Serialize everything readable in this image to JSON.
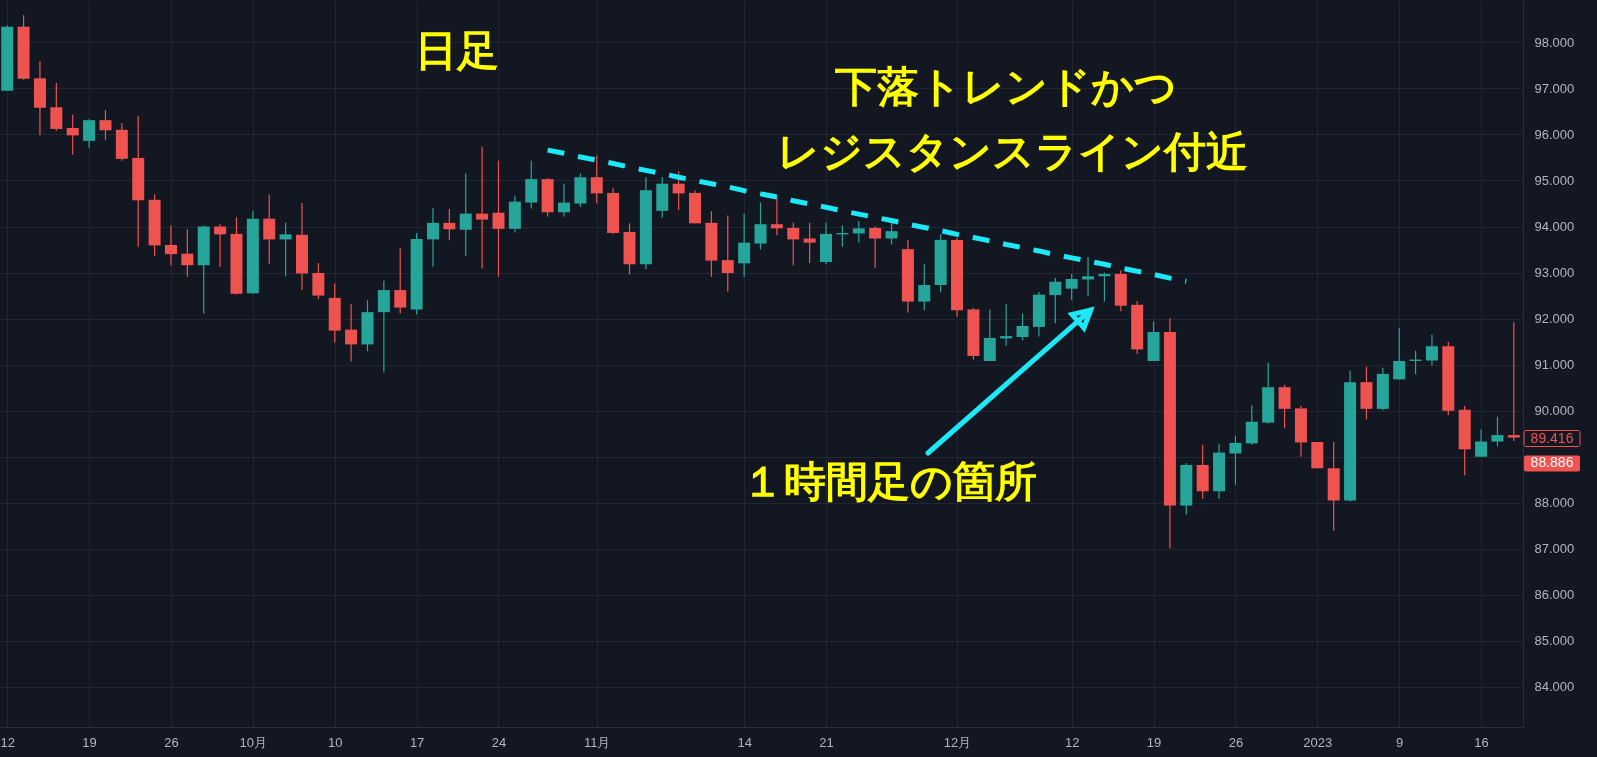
{
  "chart_data": {
    "type": "candlestick",
    "categories": [
      "12",
      null,
      null,
      null,
      null,
      "19",
      null,
      null,
      null,
      null,
      "26",
      null,
      null,
      null,
      null,
      "10月",
      null,
      null,
      null,
      null,
      "10",
      null,
      null,
      null,
      null,
      "17",
      null,
      null,
      null,
      null,
      "24",
      null,
      null,
      null,
      null,
      null,
      "11月",
      null,
      null,
      null,
      null,
      null,
      null,
      null,
      null,
      "14",
      null,
      null,
      null,
      null,
      "21",
      null,
      null,
      null,
      null,
      null,
      null,
      null,
      "12月",
      null,
      null,
      null,
      null,
      null,
      null,
      "12",
      null,
      null,
      null,
      null,
      "19",
      null,
      null,
      null,
      null,
      "26",
      null,
      null,
      null,
      null,
      "2023",
      null,
      null,
      null,
      null,
      "9",
      null,
      null,
      null,
      null,
      "16",
      null,
      null
    ],
    "ohlc": [
      [
        96.95,
        98.37,
        96.95,
        98.34
      ],
      [
        98.34,
        98.59,
        97.19,
        97.21
      ],
      [
        97.22,
        97.59,
        95.98,
        96.58
      ],
      [
        96.59,
        97.12,
        96.08,
        96.12
      ],
      [
        96.14,
        96.43,
        95.56,
        95.98
      ],
      [
        95.86,
        96.33,
        95.71,
        96.31
      ],
      [
        96.31,
        96.53,
        95.88,
        96.09
      ],
      [
        96.1,
        96.25,
        95.43,
        95.47
      ],
      [
        95.49,
        96.4,
        93.56,
        94.57
      ],
      [
        94.58,
        94.7,
        93.36,
        93.59
      ],
      [
        93.6,
        94.02,
        93.16,
        93.4
      ],
      [
        93.41,
        93.94,
        92.91,
        93.16
      ],
      [
        93.16,
        94.02,
        92.11,
        94.0
      ],
      [
        94.0,
        94.05,
        93.12,
        93.83
      ],
      [
        93.84,
        94.2,
        92.52,
        92.54
      ],
      [
        92.55,
        94.34,
        92.54,
        94.17
      ],
      [
        94.17,
        94.69,
        93.19,
        93.72
      ],
      [
        93.72,
        94.08,
        92.92,
        93.83
      ],
      [
        93.82,
        94.51,
        92.62,
        92.98
      ],
      [
        92.99,
        93.21,
        92.42,
        92.5
      ],
      [
        92.45,
        92.76,
        91.48,
        91.74
      ],
      [
        91.76,
        92.32,
        91.07,
        91.44
      ],
      [
        91.44,
        92.4,
        91.29,
        92.14
      ],
      [
        92.14,
        92.82,
        90.83,
        92.62
      ],
      [
        92.62,
        93.53,
        92.11,
        92.24
      ],
      [
        92.2,
        93.86,
        92.09,
        93.73
      ],
      [
        93.72,
        94.4,
        93.13,
        94.08
      ],
      [
        94.08,
        94.38,
        93.7,
        93.94
      ],
      [
        93.93,
        95.15,
        93.36,
        94.28
      ],
      [
        94.28,
        95.73,
        93.09,
        94.15
      ],
      [
        94.3,
        95.43,
        92.91,
        93.95
      ],
      [
        93.95,
        94.67,
        93.87,
        94.54
      ],
      [
        94.52,
        95.43,
        94.39,
        95.03
      ],
      [
        95.03,
        95.05,
        94.22,
        94.31
      ],
      [
        94.31,
        94.93,
        94.22,
        94.52
      ],
      [
        94.5,
        95.15,
        94.43,
        95.07
      ],
      [
        95.07,
        95.54,
        94.5,
        94.72
      ],
      [
        94.73,
        94.83,
        93.84,
        93.86
      ],
      [
        93.88,
        94.07,
        92.96,
        93.18
      ],
      [
        93.18,
        95.07,
        93.08,
        94.79
      ],
      [
        94.34,
        95.07,
        94.19,
        94.93
      ],
      [
        94.93,
        95.2,
        94.36,
        94.72
      ],
      [
        94.73,
        94.78,
        94.07,
        94.07
      ],
      [
        94.08,
        94.33,
        92.91,
        93.26
      ],
      [
        93.27,
        94.24,
        92.59,
        92.99
      ],
      [
        93.2,
        94.28,
        92.91,
        93.65
      ],
      [
        93.63,
        94.52,
        93.5,
        94.05
      ],
      [
        94.05,
        94.64,
        93.81,
        93.96
      ],
      [
        93.97,
        94.08,
        93.16,
        93.72
      ],
      [
        93.74,
        94.08,
        93.21,
        93.65
      ],
      [
        93.23,
        94.08,
        93.18,
        93.84
      ],
      [
        93.83,
        94.02,
        93.56,
        93.86
      ],
      [
        93.85,
        94.12,
        93.65,
        93.96
      ],
      [
        93.97,
        94.0,
        93.1,
        93.74
      ],
      [
        93.74,
        94.08,
        93.61,
        93.9
      ],
      [
        93.51,
        93.71,
        92.13,
        92.37
      ],
      [
        92.37,
        93.19,
        92.18,
        92.73
      ],
      [
        92.73,
        93.83,
        92.57,
        93.71
      ],
      [
        93.71,
        93.75,
        92.04,
        92.18
      ],
      [
        92.2,
        92.23,
        91.11,
        91.19
      ],
      [
        91.08,
        92.19,
        91.08,
        91.58
      ],
      [
        91.57,
        92.32,
        91.41,
        91.62
      ],
      [
        91.6,
        92.11,
        91.53,
        91.84
      ],
      [
        91.82,
        92.58,
        91.61,
        92.52
      ],
      [
        92.51,
        92.88,
        91.9,
        92.8
      ],
      [
        92.65,
        92.97,
        92.4,
        92.86
      ],
      [
        92.85,
        93.34,
        92.48,
        92.92
      ],
      [
        92.92,
        93.0,
        92.37,
        92.97
      ],
      [
        92.97,
        93.05,
        92.16,
        92.28
      ],
      [
        92.3,
        92.38,
        91.23,
        91.33
      ],
      [
        91.08,
        91.94,
        91.08,
        91.71
      ],
      [
        91.71,
        92.01,
        87.01,
        87.94
      ],
      [
        87.94,
        88.86,
        87.74,
        88.82
      ],
      [
        88.82,
        89.26,
        88.08,
        88.25
      ],
      [
        88.25,
        89.28,
        88.09,
        89.09
      ],
      [
        89.07,
        89.46,
        88.39,
        89.3
      ],
      [
        89.29,
        90.12,
        89.26,
        89.76
      ],
      [
        89.74,
        91.04,
        89.72,
        90.51
      ],
      [
        90.51,
        90.56,
        89.62,
        90.04
      ],
      [
        90.05,
        90.11,
        89.0,
        89.31
      ],
      [
        89.32,
        89.32,
        88.75,
        88.75
      ],
      [
        88.75,
        89.32,
        87.39,
        88.05
      ],
      [
        88.05,
        90.87,
        88.02,
        90.62
      ],
      [
        90.62,
        90.96,
        89.81,
        90.04
      ],
      [
        90.04,
        90.93,
        90.01,
        90.8
      ],
      [
        90.68,
        91.8,
        90.68,
        91.08
      ],
      [
        91.08,
        91.3,
        90.79,
        91.11
      ],
      [
        91.09,
        91.65,
        90.98,
        91.4
      ],
      [
        91.4,
        91.49,
        89.9,
        90.0
      ],
      [
        90.02,
        90.1,
        88.6,
        89.16
      ],
      [
        89.0,
        89.59,
        89.0,
        89.33
      ],
      [
        89.33,
        89.87,
        89.22,
        89.47
      ],
      [
        89.47,
        91.92,
        89.34,
        89.416
      ]
    ],
    "colors": [
      "#26a69a",
      "#ef5350",
      "#ef5350",
      "#ef5350",
      "#ef5350",
      "#26a69a",
      "#ef5350",
      "#ef5350",
      "#ef5350",
      "#ef5350",
      "#ef5350",
      "#ef5350",
      "#26a69a",
      "#ef5350",
      "#ef5350",
      "#26a69a",
      "#ef5350",
      "#26a69a",
      "#ef5350",
      "#ef5350",
      "#ef5350",
      "#ef5350",
      "#26a69a",
      "#26a69a",
      "#ef5350",
      "#26a69a",
      "#26a69a",
      "#ef5350",
      "#26a69a",
      "#ef5350",
      "#ef5350",
      "#26a69a",
      "#26a69a",
      "#ef5350",
      "#26a69a",
      "#26a69a",
      "#ef5350",
      "#ef5350",
      "#ef5350",
      "#26a69a",
      "#26a69a",
      "#ef5350",
      "#ef5350",
      "#ef5350",
      "#ef5350",
      "#26a69a",
      "#26a69a",
      "#ef5350",
      "#ef5350",
      "#ef5350",
      "#26a69a",
      "#26a69a",
      "#26a69a",
      "#ef5350",
      "#26a69a",
      "#ef5350",
      "#26a69a",
      "#26a69a",
      "#ef5350",
      "#ef5350",
      "#26a69a",
      "#26a69a",
      "#26a69a",
      "#26a69a",
      "#26a69a",
      "#26a69a",
      "#26a69a",
      "#26a69a",
      "#ef5350",
      "#ef5350",
      "#26a69a",
      "#ef5350",
      "#26a69a",
      "#ef5350",
      "#26a69a",
      "#26a69a",
      "#26a69a",
      "#26a69a",
      "#ef5350",
      "#ef5350",
      "#ef5350",
      "#ef5350",
      "#26a69a",
      "#ef5350",
      "#26a69a",
      "#26a69a",
      "#26a69a",
      "#26a69a",
      "#ef5350",
      "#ef5350",
      "#26a69a",
      "#26a69a",
      "#ef5350"
    ],
    "series": [
      {
        "type": "line",
        "color": "#1de9f6",
        "line_style": "dashed",
        "values": [
          null,
          null,
          null,
          null,
          null,
          null,
          null,
          null,
          null,
          null,
          null,
          null,
          null,
          null,
          null,
          null,
          null,
          null,
          null,
          null,
          null,
          null,
          null,
          null,
          null,
          null,
          null,
          null,
          null,
          null,
          null,
          null,
          null,
          95.66,
          95.59,
          95.51,
          95.44,
          95.37,
          95.29,
          95.22,
          95.15,
          95.07,
          95.0,
          94.93,
          94.86,
          94.78,
          94.71,
          94.64,
          94.56,
          94.49,
          94.42,
          94.34,
          94.27,
          94.2,
          94.13,
          94.05,
          93.98,
          93.91,
          93.83,
          93.76,
          93.69,
          93.61,
          93.54,
          93.47,
          93.39,
          93.32,
          93.25,
          93.18,
          93.1,
          93.03,
          92.96,
          92.88,
          92.81,
          null,
          null,
          null,
          null,
          null,
          null,
          null,
          null,
          null,
          null,
          null,
          null,
          null,
          null,
          null,
          null,
          null,
          null,
          null,
          null
        ]
      }
    ],
    "ylim": [
      83.13,
      98.92
    ],
    "yticks": [
      {
        "value": 84,
        "label": "84.000"
      },
      {
        "value": 85,
        "label": "85.000"
      },
      {
        "value": 86,
        "label": "86.000"
      },
      {
        "value": 87,
        "label": "87.000"
      },
      {
        "value": 88,
        "label": "88.000"
      },
      {
        "value": 89,
        "label": null
      },
      {
        "value": 90,
        "label": "90.000"
      },
      {
        "value": 91,
        "label": "91.000"
      },
      {
        "value": 92,
        "label": "92.000"
      },
      {
        "value": 93,
        "label": "93.000"
      },
      {
        "value": 94,
        "label": "94.000"
      },
      {
        "value": 95,
        "label": "95.000"
      },
      {
        "value": 96,
        "label": "96.000"
      },
      {
        "value": 97,
        "label": "97.000"
      },
      {
        "value": 98,
        "label": "98.000"
      }
    ],
    "grid": true,
    "annotations": [
      "日足",
      "下落トレンドかつ",
      "レジスタンスライン付近",
      "１時間足の箇所",
      "89.416",
      "88.886"
    ]
  }
}
